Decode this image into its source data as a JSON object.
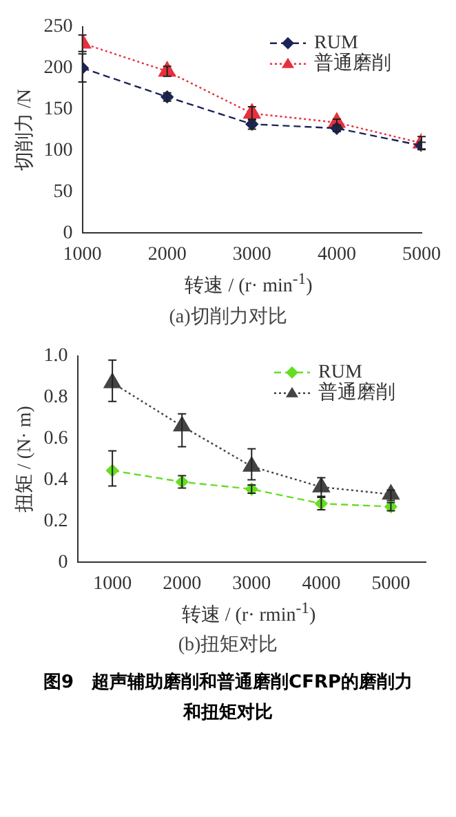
{
  "chart_data": [
    {
      "type": "line",
      "subtitle": "(a)切削力对比",
      "xlabel": "转速 / (r· min$^{-1}$)",
      "ylabel": "切削力 /N",
      "x": [
        1000,
        2000,
        3000,
        4000,
        5000
      ],
      "xlim": [
        1000,
        5000
      ],
      "xticks": [
        1000,
        2000,
        3000,
        4000,
        5000
      ],
      "ylim": [
        0,
        250
      ],
      "yticks": [
        0,
        50,
        100,
        150,
        200,
        250
      ],
      "grid": false,
      "legend": "top right",
      "series": [
        {
          "name": "RUM",
          "color": "#1b2458",
          "marker": "diamond",
          "line_style": "dashed",
          "values": [
            200,
            165,
            132,
            127,
            106
          ],
          "errors": [
            [
              183,
              217
            ],
            5,
            6,
            4,
            4
          ]
        },
        {
          "name": "普通磨削",
          "color": "#e8303c",
          "marker": "triangle",
          "line_style": "dotted",
          "values": [
            230,
            196,
            145,
            134,
            109
          ],
          "errors": [
            10,
            6,
            8,
            4,
            8
          ]
        }
      ]
    },
    {
      "type": "line",
      "subtitle": "(b)扭矩对比",
      "xlabel": "转速 / (r· rmin$^{-1}$)",
      "ylabel": "扭矩 / (N· m)",
      "x": [
        1000,
        2000,
        3000,
        4000,
        5000
      ],
      "xlim": [
        500,
        5500
      ],
      "xticks": [
        1000,
        2000,
        3000,
        4000,
        5000
      ],
      "ylim": [
        0,
        1
      ],
      "yticks": [
        0,
        0.2,
        0.4,
        0.6,
        0.8,
        {
          "value": 1,
          "label": "1.0"
        }
      ],
      "grid": false,
      "legend": "top right",
      "annotations": [
        "图9　超声辅助磨削和普通磨削CFRP的磨削力和扭矩对比"
      ],
      "series": [
        {
          "name": "RUM",
          "color": "#66dd22",
          "marker": "diamond",
          "line_style": "dashed",
          "values": [
            0.445,
            0.39,
            0.355,
            0.285,
            0.27
          ],
          "errors": [
            [
              0.37,
              0.54
            ],
            0.03,
            0.02,
            0.03,
            0.02
          ]
        },
        {
          "name": "普通磨削",
          "color": "#444444",
          "marker": "triangle",
          "line_style": "dotted",
          "values": [
            0.87,
            0.66,
            0.465,
            0.365,
            0.33
          ],
          "errors": [
            [
              0.78,
              0.98
            ],
            [
              0.56,
              0.72
            ],
            [
              0.4,
              0.55
            ],
            [
              0.32,
              0.41
            ],
            [
              0.3,
              0.35
            ]
          ]
        }
      ]
    }
  ]
}
